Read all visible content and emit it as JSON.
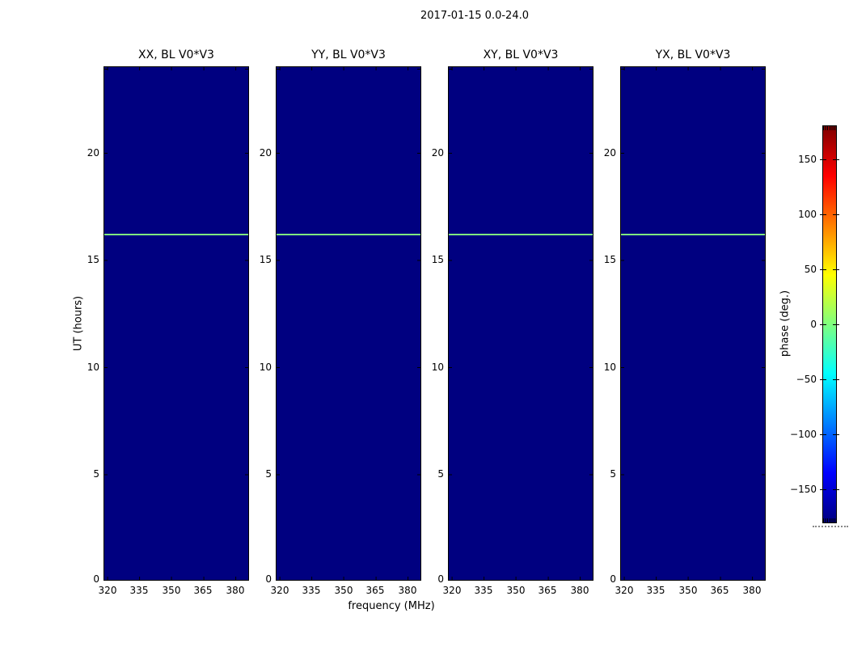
{
  "figure": {
    "title": "2017-01-15 0.0-24.0",
    "xlabel": "frequency (MHz)",
    "ylabel": "UT (hours)"
  },
  "panels": [
    {
      "title": "XX, BL V0*V3"
    },
    {
      "title": "YY, BL V0*V3"
    },
    {
      "title": "XY, BL V0*V3"
    },
    {
      "title": "YX, BL V0*V3"
    }
  ],
  "axes": {
    "x_ticks": [
      "320",
      "335",
      "350",
      "365",
      "380"
    ],
    "y_ticks": [
      "20",
      "15",
      "10",
      "5",
      "0"
    ]
  },
  "colorbar": {
    "label": "phase (deg.)",
    "ticks": [
      "150",
      "100",
      "50",
      "0",
      "−50",
      "−100",
      "−150"
    ],
    "colormap": "jet",
    "min_color": "#000080",
    "max_color": "#800000"
  },
  "colors": {
    "panel_background": "#000080",
    "feature_line": "#7fe87f",
    "figure_background": "#ffffff"
  },
  "chart_data": {
    "type": "heatmap",
    "title": "2017-01-15 0.0-24.0",
    "xlabel": "frequency (MHz)",
    "ylabel": "UT (hours)",
    "colorbar_label": "phase (deg.)",
    "colormap": "jet",
    "color_range_deg": [
      -180,
      180
    ],
    "colorbar_ticks": [
      150,
      100,
      50,
      0,
      -50,
      -100,
      -150
    ],
    "x_ticks_mhz": [
      320,
      335,
      350,
      365,
      380
    ],
    "x_range_mhz": [
      319,
      388
    ],
    "y_ticks_hours": [
      0,
      5,
      10,
      15,
      20
    ],
    "y_range_hours": [
      0,
      24
    ],
    "grid": false,
    "legend": false,
    "panels": [
      {
        "title": "XX, BL V0*V3",
        "background_phase_deg": -180,
        "feature": {
          "type": "horizontal-line",
          "ut_hours": 16.1,
          "phase_deg": 18,
          "extent": "all frequencies"
        }
      },
      {
        "title": "YY, BL V0*V3",
        "background_phase_deg": -180,
        "feature": {
          "type": "horizontal-line",
          "ut_hours": 16.1,
          "phase_deg": 18,
          "extent": "all frequencies"
        }
      },
      {
        "title": "XY, BL V0*V3",
        "background_phase_deg": -180,
        "feature": {
          "type": "horizontal-line",
          "ut_hours": 16.1,
          "phase_deg": 18,
          "extent": "all frequencies"
        }
      },
      {
        "title": "YX, BL V0*V3",
        "background_phase_deg": -180,
        "feature": {
          "type": "horizontal-line",
          "ut_hours": 16.1,
          "phase_deg": 18,
          "extent": "all frequencies"
        }
      }
    ]
  }
}
